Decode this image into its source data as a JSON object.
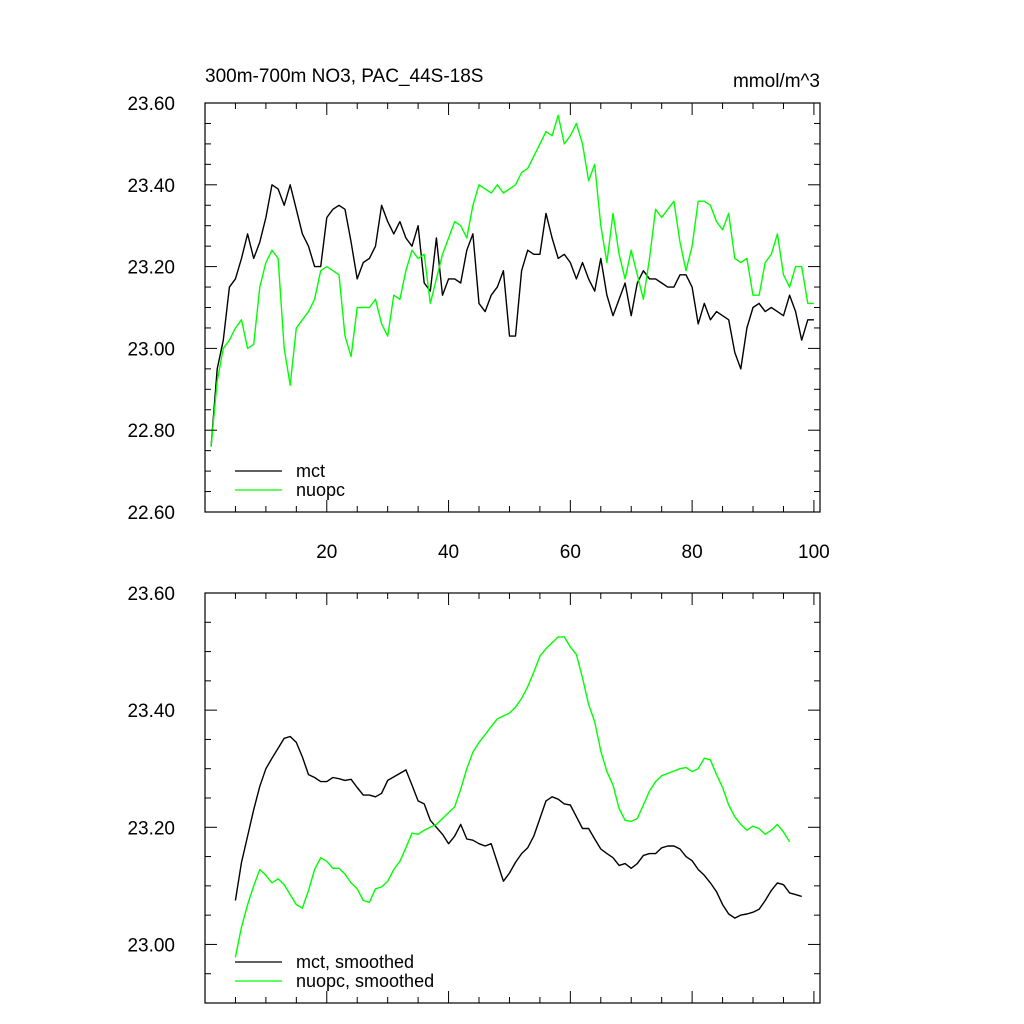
{
  "chart_data": [
    {
      "type": "line",
      "title": "300m-700m NO3, PAC_44S-18S",
      "units": "mmol/m^3",
      "xlim": [
        0,
        101
      ],
      "ylim": [
        22.6,
        23.6
      ],
      "xticks": [
        20,
        40,
        60,
        80,
        100
      ],
      "xtick_labels": [
        "20",
        "40",
        "60",
        "80",
        "100"
      ],
      "yticks": [
        22.6,
        22.8,
        23.0,
        23.2,
        23.4,
        23.6
      ],
      "ytick_labels": [
        "22.60",
        "22.80",
        "23.00",
        "23.20",
        "23.40",
        "23.60"
      ],
      "legend_position": "bottom-left",
      "series": [
        {
          "name": "mct",
          "color": "#000000",
          "x_start": 1,
          "values": [
            22.76,
            22.95,
            23.02,
            23.15,
            23.17,
            23.22,
            23.28,
            23.22,
            23.26,
            23.32,
            23.4,
            23.39,
            23.35,
            23.4,
            23.34,
            23.28,
            23.25,
            23.2,
            23.2,
            23.32,
            23.34,
            23.35,
            23.34,
            23.26,
            23.17,
            23.21,
            23.22,
            23.25,
            23.35,
            23.31,
            23.28,
            23.31,
            23.27,
            23.25,
            23.3,
            23.16,
            23.14,
            23.27,
            23.13,
            23.17,
            23.17,
            23.16,
            23.24,
            23.28,
            23.11,
            23.09,
            23.13,
            23.15,
            23.19,
            23.03,
            23.03,
            23.19,
            23.24,
            23.23,
            23.23,
            23.33,
            23.27,
            23.22,
            23.23,
            23.21,
            23.17,
            23.21,
            23.17,
            23.14,
            23.22,
            23.13,
            23.08,
            23.12,
            23.16,
            23.08,
            23.16,
            23.19,
            23.17,
            23.17,
            23.16,
            23.15,
            23.15,
            23.18,
            23.18,
            23.15,
            23.06,
            23.11,
            23.07,
            23.09,
            23.08,
            23.07,
            22.99,
            22.95,
            23.05,
            23.1,
            23.11,
            23.09,
            23.1,
            23.09,
            23.08,
            23.13,
            23.09,
            23.02,
            23.07,
            23.07
          ]
        },
        {
          "name": "nuopc",
          "color": "#00ff00",
          "x_start": 1,
          "values": [
            22.76,
            22.92,
            23.0,
            23.02,
            23.05,
            23.07,
            23.0,
            23.01,
            23.15,
            23.21,
            23.24,
            23.22,
            23.0,
            22.91,
            23.05,
            23.07,
            23.09,
            23.12,
            23.19,
            23.2,
            23.19,
            23.18,
            23.03,
            22.98,
            23.1,
            23.1,
            23.1,
            23.12,
            23.06,
            23.03,
            23.13,
            23.12,
            23.19,
            23.24,
            23.22,
            23.23,
            23.11,
            23.17,
            23.23,
            23.27,
            23.31,
            23.3,
            23.27,
            23.35,
            23.4,
            23.39,
            23.38,
            23.4,
            23.38,
            23.39,
            23.4,
            23.43,
            23.44,
            23.47,
            23.5,
            23.53,
            23.52,
            23.57,
            23.5,
            23.52,
            23.55,
            23.5,
            23.41,
            23.45,
            23.3,
            23.21,
            23.33,
            23.23,
            23.17,
            23.24,
            23.18,
            23.12,
            23.22,
            23.34,
            23.32,
            23.34,
            23.36,
            23.26,
            23.19,
            23.25,
            23.36,
            23.36,
            23.35,
            23.31,
            23.29,
            23.33,
            23.22,
            23.21,
            23.22,
            23.13,
            23.13,
            23.21,
            23.23,
            23.28,
            23.18,
            23.15,
            23.2,
            23.2,
            23.11,
            23.11
          ]
        }
      ]
    },
    {
      "type": "line",
      "title": "",
      "xlim": [
        0,
        101
      ],
      "ylim": [
        22.9,
        23.6
      ],
      "yticks": [
        23.0,
        23.2,
        23.4,
        23.6
      ],
      "ytick_labels": [
        "23.00",
        "23.20",
        "23.40",
        "23.60"
      ],
      "legend_position": "bottom-left",
      "series": [
        {
          "name": "mct, smoothed",
          "color": "#000000",
          "x_start": 5,
          "values": [
            23.075,
            23.14,
            23.185,
            23.23,
            23.27,
            23.3,
            23.318,
            23.335,
            23.352,
            23.355,
            23.345,
            23.32,
            23.29,
            23.285,
            23.278,
            23.278,
            23.285,
            23.283,
            23.28,
            23.282,
            23.268,
            23.255,
            23.255,
            23.252,
            23.258,
            23.28,
            23.286,
            23.292,
            23.298,
            23.272,
            23.245,
            23.24,
            23.212,
            23.2,
            23.188,
            23.172,
            23.185,
            23.205,
            23.18,
            23.178,
            23.172,
            23.168,
            23.172,
            23.14,
            23.108,
            23.122,
            23.14,
            23.155,
            23.165,
            23.185,
            23.215,
            23.245,
            23.252,
            23.248,
            23.24,
            23.238,
            23.218,
            23.198,
            23.198,
            23.18,
            23.163,
            23.155,
            23.148,
            23.135,
            23.138,
            23.13,
            23.138,
            23.152,
            23.155,
            23.155,
            23.165,
            23.168,
            23.168,
            23.163,
            23.15,
            23.143,
            23.128,
            23.118,
            23.105,
            23.09,
            23.068,
            23.052,
            23.045,
            23.05,
            23.052,
            23.055,
            23.06,
            23.075,
            23.092,
            23.105,
            23.102,
            23.088,
            23.085,
            23.082
          ]
        },
        {
          "name": "nuopc, smoothed",
          "color": "#00ff00",
          "x_start": 5,
          "values": [
            22.978,
            23.03,
            23.068,
            23.1,
            23.128,
            23.118,
            23.105,
            23.112,
            23.102,
            23.085,
            23.068,
            23.062,
            23.092,
            23.128,
            23.148,
            23.142,
            23.13,
            23.13,
            23.12,
            23.105,
            23.095,
            23.075,
            23.072,
            23.095,
            23.098,
            23.108,
            23.128,
            23.142,
            23.165,
            23.19,
            23.188,
            23.195,
            23.2,
            23.205,
            23.215,
            23.225,
            23.235,
            23.265,
            23.3,
            23.328,
            23.345,
            23.358,
            23.372,
            23.385,
            23.39,
            23.395,
            23.405,
            23.42,
            23.44,
            23.465,
            23.492,
            23.505,
            23.515,
            23.525,
            23.525,
            23.508,
            23.495,
            23.455,
            23.41,
            23.38,
            23.33,
            23.295,
            23.272,
            23.232,
            23.212,
            23.21,
            23.215,
            23.238,
            23.262,
            23.278,
            23.288,
            23.292,
            23.296,
            23.3,
            23.302,
            23.295,
            23.3,
            23.318,
            23.315,
            23.29,
            23.268,
            23.238,
            23.218,
            23.205,
            23.195,
            23.202,
            23.198,
            23.188,
            23.195,
            23.205,
            23.192,
            23.175
          ]
        }
      ]
    }
  ]
}
